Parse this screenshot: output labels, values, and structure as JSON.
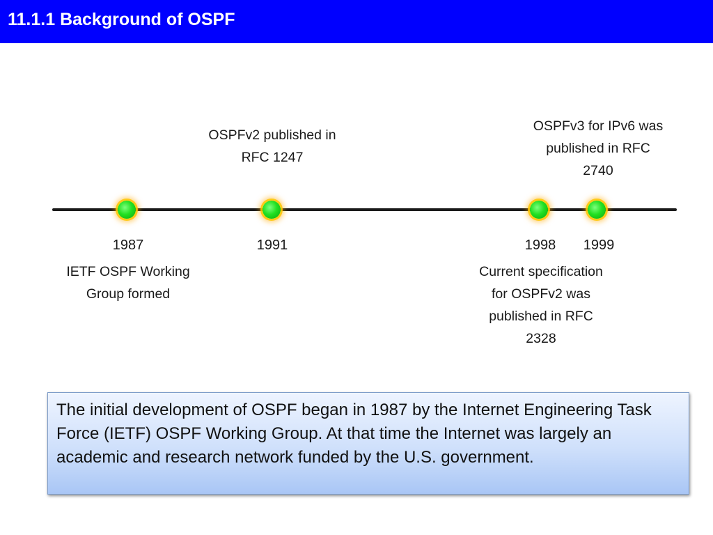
{
  "slide": {
    "title": "11.1.1 Background of OSPF"
  },
  "timeline": {
    "events": [
      {
        "year": "1987",
        "description_lines": [
          "IETF OSPF Working",
          "Group formed"
        ]
      },
      {
        "year": "1991",
        "description_lines": [
          "OSPFv2 published in",
          "RFC 1247"
        ]
      },
      {
        "year": "1998",
        "description_lines": [
          "Current specification",
          "for OSPFv2 was",
          "published in RFC",
          "2328"
        ]
      },
      {
        "year": "1999",
        "description_lines": [
          "OSPFv3 for IPv6 was",
          "published in RFC",
          "2740"
        ]
      }
    ]
  },
  "info_box": {
    "text": "The initial development of OSPF began in 1987 by the Internet Engineering Task Force (IETF) OSPF Working Group. At that time the Internet was largely an academic and research network funded by the U.S. government."
  },
  "colors": {
    "title_bar": "#0000ff",
    "title_text": "#ffffff",
    "dot": "#22e022",
    "dot_glow": "#ffc800",
    "timeline_line": "#1a1a1a",
    "info_box_top": "#eef4ff",
    "info_box_bottom": "#a9c6f5"
  }
}
